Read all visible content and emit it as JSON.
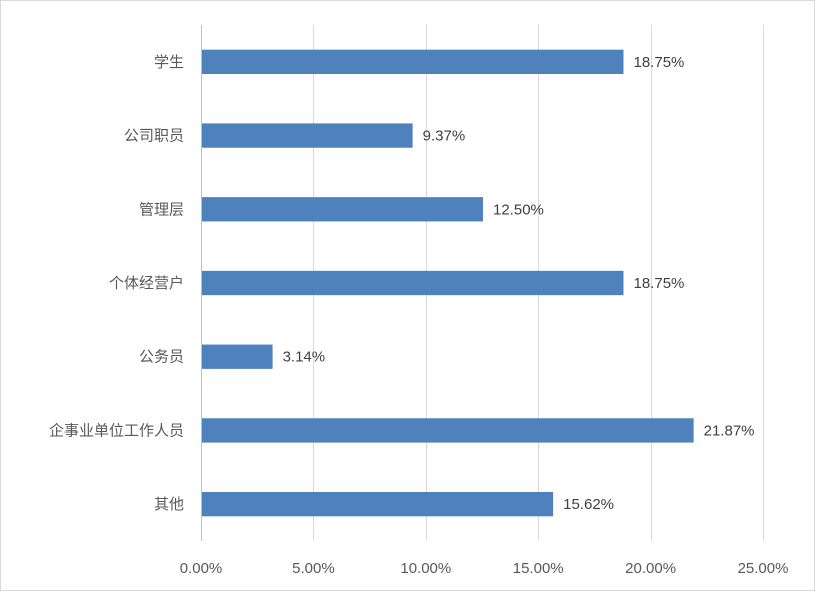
{
  "chart_data": {
    "type": "bar",
    "orientation": "horizontal",
    "title": "",
    "xlabel": "",
    "ylabel": "",
    "categories": [
      "学生",
      "公司职员",
      "管理层",
      "个体经营户",
      "公务员",
      "企事业单位工作人员",
      "其他"
    ],
    "values": [
      18.75,
      9.37,
      12.5,
      18.75,
      3.14,
      21.87,
      15.62
    ],
    "value_labels": [
      "18.75%",
      "9.37%",
      "12.50%",
      "18.75%",
      "3.14%",
      "21.87%",
      "15.62%"
    ],
    "xlim": [
      0,
      25
    ],
    "xticks": [
      0,
      5,
      10,
      15,
      20,
      25
    ],
    "xtick_labels": [
      "0.00%",
      "5.00%",
      "10.00%",
      "15.00%",
      "20.00%",
      "25.00%"
    ],
    "grid": "vertical",
    "legend": "none",
    "bar_color": "#4f81bd"
  }
}
